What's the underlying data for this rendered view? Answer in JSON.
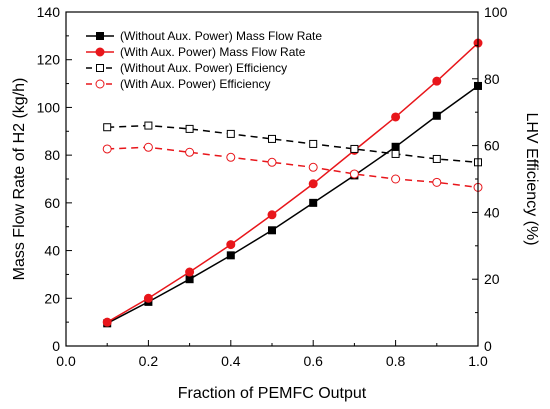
{
  "chart_data": {
    "type": "line",
    "xlabel": "Fraction of PEMFC Output",
    "ylabel_left": "Mass Flow Rate of H2 (kg/h)",
    "ylabel_right": "LHV Efficiency (%)",
    "xlim": [
      0.0,
      1.0
    ],
    "ylim_left": [
      0,
      140
    ],
    "ylim_right": [
      0,
      100
    ],
    "x_ticks": [
      "0.0",
      "0.2",
      "0.4",
      "0.6",
      "0.8",
      "1.0"
    ],
    "y_left_ticks": [
      "0",
      "20",
      "40",
      "60",
      "80",
      "100",
      "120",
      "140"
    ],
    "y_right_ticks": [
      "0",
      "20",
      "40",
      "60",
      "80",
      "100"
    ],
    "grid": false,
    "legend_position": "top-left",
    "x": [
      0.1,
      0.2,
      0.3,
      0.4,
      0.5,
      0.6,
      0.7,
      0.8,
      0.9,
      1.0
    ],
    "series": [
      {
        "name": "(Without Aux. Power) Mass Flow Rate",
        "axis": "left",
        "color": "#000000",
        "line": "solid",
        "marker": "square-filled",
        "values": [
          9.5,
          18.5,
          28,
          38,
          48.5,
          60,
          71.5,
          83.5,
          96.5,
          109
        ]
      },
      {
        "name": "(With Aux. Power) Mass Flow Rate",
        "axis": "left",
        "color": "#e8161b",
        "line": "solid",
        "marker": "circle-filled",
        "values": [
          10,
          20,
          31,
          42.5,
          55,
          68,
          82,
          96,
          111,
          127
        ]
      },
      {
        "name": "(Without Aux. Power) Efficiency",
        "axis": "right",
        "color": "#000000",
        "line": "dashed",
        "marker": "square-open",
        "values": [
          65.5,
          66,
          65,
          63.5,
          62,
          60.5,
          59,
          57.5,
          56,
          55
        ]
      },
      {
        "name": "(With Aux. Power) Efficiency",
        "axis": "right",
        "color": "#e8161b",
        "line": "dashed",
        "marker": "circle-open",
        "values": [
          59,
          59.5,
          58,
          56.5,
          55,
          53.5,
          51.5,
          50,
          49,
          47.5
        ]
      }
    ]
  }
}
